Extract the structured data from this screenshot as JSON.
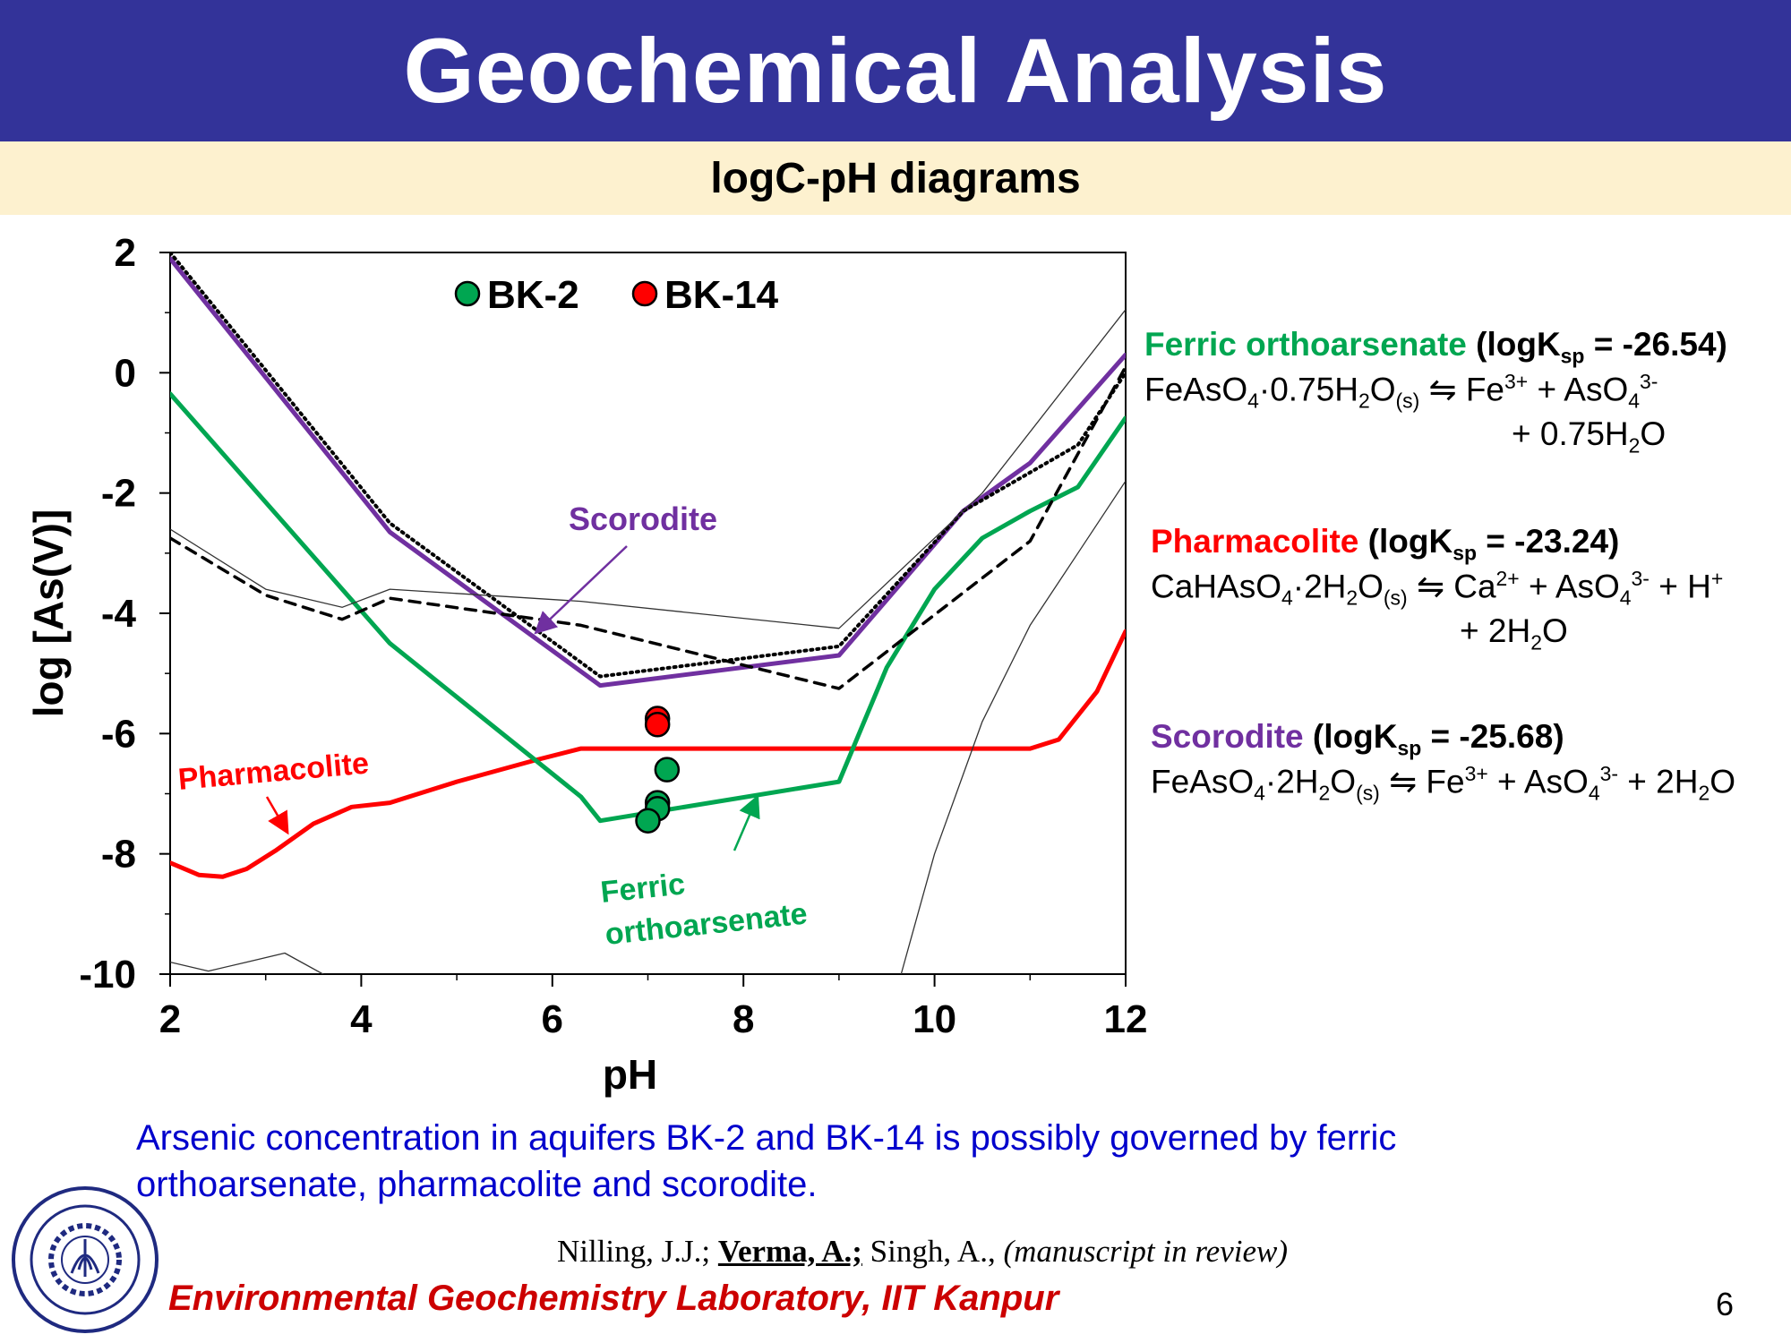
{
  "title": "Geochemical Analysis",
  "subtitle": "logC-pH diagrams",
  "colors": {
    "banner": "#333399",
    "subtitle_band": "#fdf1cf",
    "ferric": "#00a651",
    "pharmacolite": "#ff0000",
    "scorodite": "#7030a0",
    "conclusion": "#0000cc",
    "footer": "#cc0000"
  },
  "chart_data": {
    "type": "line",
    "xlabel": "pH",
    "ylabel": "log [As(V)]",
    "xlim": [
      2,
      12
    ],
    "ylim": [
      -10,
      2
    ],
    "xticks": [
      "2",
      "4",
      "6",
      "8",
      "10",
      "12"
    ],
    "yticks": [
      "2",
      "0",
      "-2",
      "-4",
      "-6",
      "-8",
      "-10"
    ],
    "legend": [
      {
        "name": "BK-2",
        "color": "#00a651"
      },
      {
        "name": "BK-14",
        "color": "#ff0000"
      }
    ],
    "series": [
      {
        "name": "Scorodite",
        "color": "#7030a0",
        "x": [
          2,
          4.3,
          6.5,
          9.0,
          10.3,
          11.0,
          12.0
        ],
        "y": [
          1.9,
          -2.65,
          -5.2,
          -4.7,
          -2.3,
          -1.5,
          0.3
        ]
      },
      {
        "name": "Pharmacolite",
        "color": "#ff0000",
        "x": [
          2,
          2.3,
          2.55,
          2.8,
          3.1,
          3.5,
          3.9,
          4.3,
          5.0,
          5.8,
          6.3,
          11.0,
          11.3,
          11.7,
          12.0
        ],
        "y": [
          -8.15,
          -8.35,
          -8.38,
          -8.25,
          -7.95,
          -7.5,
          -7.22,
          -7.15,
          -6.8,
          -6.45,
          -6.25,
          -6.25,
          -6.1,
          -5.3,
          -4.3
        ]
      },
      {
        "name": "Ferric orthoarsenate",
        "color": "#00a651",
        "x": [
          2,
          4.3,
          6.3,
          6.5,
          9.0,
          9.5,
          10.0,
          10.5,
          11.0,
          11.5,
          12.0
        ],
        "y": [
          -0.35,
          -4.5,
          -7.05,
          -7.45,
          -6.8,
          -4.9,
          -3.6,
          -2.75,
          -2.3,
          -1.9,
          -0.75
        ]
      },
      {
        "name": "dotted",
        "color": "#000000",
        "x": [
          2,
          4.3,
          6.5,
          9.0,
          10.3,
          11.5,
          12.0
        ],
        "y": [
          2.0,
          -2.5,
          -5.05,
          -4.55,
          -2.3,
          -1.2,
          0.0
        ]
      },
      {
        "name": "dashed",
        "color": "#000000",
        "x": [
          2,
          3.0,
          3.8,
          4.3,
          6.3,
          9.0,
          11.0,
          12.0
        ],
        "y": [
          -2.75,
          -3.7,
          -4.1,
          -3.75,
          -4.2,
          -5.25,
          -2.8,
          0.1
        ]
      },
      {
        "name": "thin-1",
        "color": "#333333",
        "x": [
          2,
          3.0,
          3.8,
          4.3,
          6.3,
          9.0,
          10.5,
          12.0
        ],
        "y": [
          -2.6,
          -3.6,
          -3.9,
          -3.6,
          -3.8,
          -4.25,
          -2.0,
          1.05
        ]
      },
      {
        "name": "thin-2",
        "color": "#333333",
        "x": [
          9.65,
          10.0,
          10.5,
          11.0,
          11.5,
          12.0
        ],
        "y": [
          -10.0,
          -8.0,
          -5.8,
          -4.2,
          -3.0,
          -1.8
        ]
      },
      {
        "name": "thin-3",
        "color": "#333333",
        "x": [
          2,
          2.4,
          2.8,
          3.2,
          3.6
        ],
        "y": [
          -9.8,
          -9.95,
          -9.8,
          -9.65,
          -10.0
        ]
      }
    ],
    "samples": [
      {
        "name": "BK-14",
        "color": "#ff0000",
        "x": [
          7.1,
          7.1
        ],
        "y": [
          -5.75,
          -5.85
        ]
      },
      {
        "name": "BK-2",
        "color": "#00a651",
        "x": [
          7.2,
          7.1,
          7.1,
          7.0
        ],
        "y": [
          -6.6,
          -7.15,
          -7.25,
          -7.45
        ]
      }
    ],
    "annotations": [
      {
        "text": "Scorodite",
        "color": "#7030a0"
      },
      {
        "text": "Pharmacolite",
        "color": "#ff0000"
      },
      {
        "text": "Ferric",
        "color": "#00a651"
      },
      {
        "text": "orthoarsenate",
        "color": "#00a651"
      }
    ]
  },
  "equations": {
    "ferric": {
      "name": "Ferric orthoarsenate",
      "k_pre": "(logK",
      "k_sub": "sp",
      "k_post": " = -26.54)",
      "line1": [
        "FeAsO",
        "4",
        "·0.75H",
        "2",
        "O",
        "(s)",
        " ⇋ Fe",
        "3+",
        " + AsO",
        "4",
        "3-"
      ],
      "line2": [
        "+ 0.75H",
        "2",
        "O"
      ]
    },
    "pharmacolite": {
      "name": "Pharmacolite",
      "k_pre": "(logK",
      "k_sub": "sp",
      "k_post": " = -23.24)",
      "line1": [
        "CaHAsO",
        "4",
        "·2H",
        "2",
        "O",
        "(s)",
        " ⇋ Ca",
        "2+",
        " + AsO",
        "4",
        "3-",
        " + H",
        "+"
      ],
      "line2": [
        "+ 2H",
        "2",
        "O"
      ]
    },
    "scorodite": {
      "name": "Scorodite",
      "k_pre": "(logK",
      "k_sub": "sp",
      "k_post": " = -25.68)",
      "line1": [
        "FeAsO",
        "4",
        "·2H",
        "2",
        "O",
        "(s)",
        " ⇋ Fe",
        "3+",
        " + AsO",
        "4",
        "3-",
        " + 2H",
        "2",
        "O"
      ]
    }
  },
  "conclusion": "Arsenic concentration in aquifers BK-2 and BK-14 is possibly governed by ferric orthoarsenate, pharmacolite and scorodite.",
  "citation": {
    "pre": "Nilling, J.J.; ",
    "bold": "Verma, A.;",
    "mid": " Singh, A., ",
    "italic": "(manuscript in review)"
  },
  "footer": "Environmental Geochemistry Laboratory, IIT Kanpur",
  "page_number": "6",
  "logo_icon": "iit-kanpur-seal-icon"
}
